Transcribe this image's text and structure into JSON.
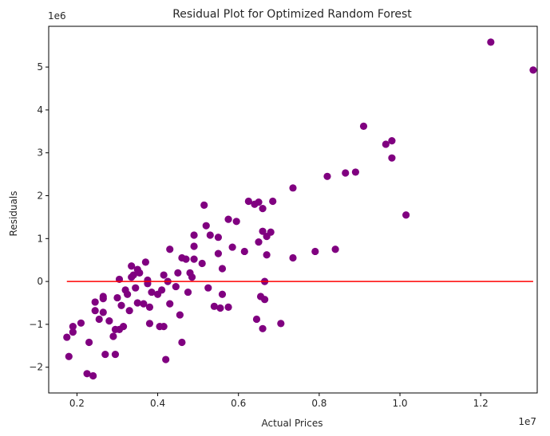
{
  "chart_data": {
    "type": "scatter",
    "title": "Residual Plot for Optimized Random Forest",
    "xlabel": "Actual Prices",
    "ylabel": "Residuals",
    "x_offset_label": "1e7",
    "y_offset_label": "1e6",
    "xlim": [
      0.13,
      1.34
    ],
    "ylim": [
      -2.6,
      5.95
    ],
    "xticks": [
      0.2,
      0.4,
      0.6,
      0.8,
      1.0,
      1.2
    ],
    "xtick_labels": [
      "0.2",
      "0.4",
      "0.6",
      "0.8",
      "1.0",
      "1.2"
    ],
    "yticks": [
      -2,
      -1,
      0,
      1,
      2,
      3,
      4,
      5
    ],
    "ytick_labels": [
      "−2",
      "−1",
      "0",
      "1",
      "2",
      "3",
      "4",
      "5"
    ],
    "grid": false,
    "point_color": "#800080",
    "line_color": "#ff0000",
    "reference_line": {
      "y": 0,
      "x_start": 0.175,
      "x_end": 1.33
    },
    "points": [
      {
        "x": 0.175,
        "y": -1.3
      },
      {
        "x": 0.18,
        "y": -1.75
      },
      {
        "x": 0.19,
        "y": -1.05
      },
      {
        "x": 0.19,
        "y": -1.18
      },
      {
        "x": 0.21,
        "y": -0.97
      },
      {
        "x": 0.225,
        "y": -2.15
      },
      {
        "x": 0.23,
        "y": -1.42
      },
      {
        "x": 0.24,
        "y": -2.2
      },
      {
        "x": 0.245,
        "y": -0.48
      },
      {
        "x": 0.245,
        "y": -0.68
      },
      {
        "x": 0.255,
        "y": -0.88
      },
      {
        "x": 0.265,
        "y": -0.35
      },
      {
        "x": 0.265,
        "y": -0.4
      },
      {
        "x": 0.265,
        "y": -0.72
      },
      {
        "x": 0.27,
        "y": -1.7
      },
      {
        "x": 0.28,
        "y": -0.92
      },
      {
        "x": 0.29,
        "y": -1.28
      },
      {
        "x": 0.295,
        "y": -1.12
      },
      {
        "x": 0.295,
        "y": -1.7
      },
      {
        "x": 0.3,
        "y": -0.38
      },
      {
        "x": 0.305,
        "y": 0.05
      },
      {
        "x": 0.305,
        "y": -1.12
      },
      {
        "x": 0.31,
        "y": -0.56
      },
      {
        "x": 0.315,
        "y": -1.05
      },
      {
        "x": 0.32,
        "y": -0.2
      },
      {
        "x": 0.325,
        "y": -0.3
      },
      {
        "x": 0.33,
        "y": -0.68
      },
      {
        "x": 0.335,
        "y": 0.1
      },
      {
        "x": 0.335,
        "y": 0.36
      },
      {
        "x": 0.34,
        "y": 0.15
      },
      {
        "x": 0.345,
        "y": -0.15
      },
      {
        "x": 0.35,
        "y": 0.28
      },
      {
        "x": 0.35,
        "y": -0.5
      },
      {
        "x": 0.355,
        "y": 0.2
      },
      {
        "x": 0.365,
        "y": -0.52
      },
      {
        "x": 0.37,
        "y": 0.45
      },
      {
        "x": 0.375,
        "y": 0.03
      },
      {
        "x": 0.375,
        "y": -0.05
      },
      {
        "x": 0.38,
        "y": -0.6
      },
      {
        "x": 0.38,
        "y": -0.98
      },
      {
        "x": 0.385,
        "y": -0.25
      },
      {
        "x": 0.4,
        "y": -0.3
      },
      {
        "x": 0.405,
        "y": -1.05
      },
      {
        "x": 0.41,
        "y": -0.2
      },
      {
        "x": 0.415,
        "y": 0.15
      },
      {
        "x": 0.415,
        "y": -1.05
      },
      {
        "x": 0.42,
        "y": -1.82
      },
      {
        "x": 0.425,
        "y": 0.0
      },
      {
        "x": 0.43,
        "y": -0.52
      },
      {
        "x": 0.43,
        "y": 0.75
      },
      {
        "x": 0.445,
        "y": -0.12
      },
      {
        "x": 0.45,
        "y": 0.2
      },
      {
        "x": 0.455,
        "y": -0.78
      },
      {
        "x": 0.46,
        "y": 0.55
      },
      {
        "x": 0.46,
        "y": -1.42
      },
      {
        "x": 0.47,
        "y": 0.52
      },
      {
        "x": 0.475,
        "y": -0.25
      },
      {
        "x": 0.48,
        "y": 0.2
      },
      {
        "x": 0.485,
        "y": 0.1
      },
      {
        "x": 0.49,
        "y": 1.08
      },
      {
        "x": 0.49,
        "y": 0.82
      },
      {
        "x": 0.49,
        "y": 0.52
      },
      {
        "x": 0.51,
        "y": 0.42
      },
      {
        "x": 0.515,
        "y": 1.78
      },
      {
        "x": 0.52,
        "y": 1.3
      },
      {
        "x": 0.525,
        "y": -0.15
      },
      {
        "x": 0.53,
        "y": 1.08
      },
      {
        "x": 0.54,
        "y": -0.58
      },
      {
        "x": 0.55,
        "y": 0.65
      },
      {
        "x": 0.55,
        "y": 1.03
      },
      {
        "x": 0.555,
        "y": -0.62
      },
      {
        "x": 0.56,
        "y": 0.3
      },
      {
        "x": 0.56,
        "y": -0.3
      },
      {
        "x": 0.575,
        "y": 1.45
      },
      {
        "x": 0.575,
        "y": -0.6
      },
      {
        "x": 0.585,
        "y": 0.8
      },
      {
        "x": 0.595,
        "y": 1.4
      },
      {
        "x": 0.615,
        "y": 0.7
      },
      {
        "x": 0.625,
        "y": 1.87
      },
      {
        "x": 0.64,
        "y": 1.8
      },
      {
        "x": 0.645,
        "y": -0.88
      },
      {
        "x": 0.65,
        "y": 1.85
      },
      {
        "x": 0.65,
        "y": 0.92
      },
      {
        "x": 0.655,
        "y": -0.35
      },
      {
        "x": 0.66,
        "y": 1.7
      },
      {
        "x": 0.66,
        "y": 1.17
      },
      {
        "x": 0.66,
        "y": -1.1
      },
      {
        "x": 0.665,
        "y": -0.42
      },
      {
        "x": 0.665,
        "y": 0.0
      },
      {
        "x": 0.67,
        "y": 1.05
      },
      {
        "x": 0.67,
        "y": 0.62
      },
      {
        "x": 0.68,
        "y": 1.15
      },
      {
        "x": 0.685,
        "y": 1.87
      },
      {
        "x": 0.705,
        "y": -0.98
      },
      {
        "x": 0.735,
        "y": 0.55
      },
      {
        "x": 0.735,
        "y": 2.18
      },
      {
        "x": 0.79,
        "y": 0.7
      },
      {
        "x": 0.82,
        "y": 2.45
      },
      {
        "x": 0.84,
        "y": 0.75
      },
      {
        "x": 0.865,
        "y": 2.53
      },
      {
        "x": 0.89,
        "y": 2.55
      },
      {
        "x": 0.91,
        "y": 3.62
      },
      {
        "x": 0.965,
        "y": 3.2
      },
      {
        "x": 0.98,
        "y": 3.28
      },
      {
        "x": 0.98,
        "y": 2.88
      },
      {
        "x": 1.015,
        "y": 1.55
      },
      {
        "x": 1.225,
        "y": 5.58
      },
      {
        "x": 1.33,
        "y": 4.93
      }
    ]
  }
}
